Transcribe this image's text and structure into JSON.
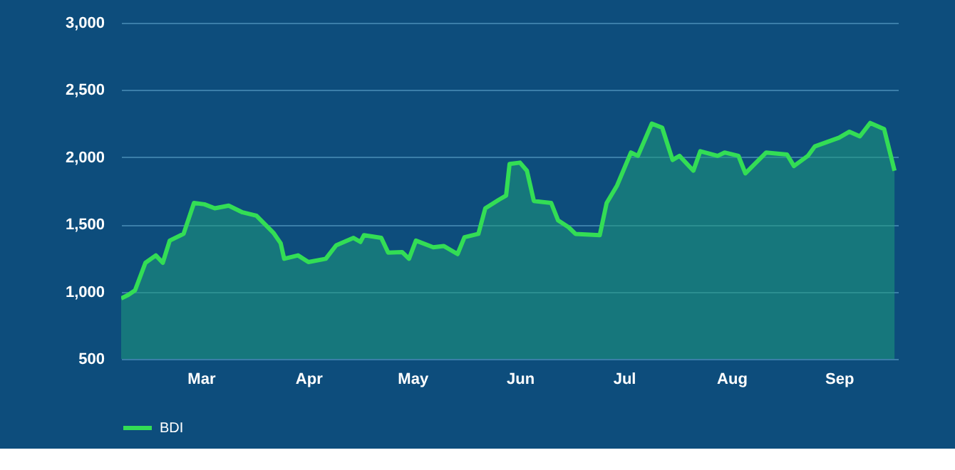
{
  "chart_data": {
    "type": "area",
    "x": [
      "--02-06",
      "--02-08",
      "--02-10",
      "--02-13",
      "--02-16",
      "--02-18",
      "--02-20",
      "--02-24",
      "--02-27",
      "--03-02",
      "--03-05",
      "--03-09",
      "--03-13",
      "--03-17",
      "--03-22",
      "--03-24",
      "--03-25",
      "--03-29",
      "--04-01",
      "--04-06",
      "--04-09",
      "--04-14",
      "--04-16",
      "--04-17",
      "--04-22",
      "--04-24",
      "--04-28",
      "--04-30",
      "--05-02",
      "--05-07",
      "--05-10",
      "--05-14",
      "--05-16",
      "--05-20",
      "--05-22",
      "--05-26",
      "--05-28",
      "--05-29",
      "--06-01",
      "--06-03",
      "--06-05",
      "--06-10",
      "--06-12",
      "--06-15",
      "--06-17",
      "--06-24",
      "--06-26",
      "--06-29",
      "--07-03",
      "--07-05",
      "--07-09",
      "--07-12",
      "--07-15",
      "--07-17",
      "--07-21",
      "--07-23",
      "--07-28",
      "--07-30",
      "--08-03",
      "--08-05",
      "--08-11",
      "--08-17",
      "--08-19",
      "--08-23",
      "--08-25",
      "--09-01",
      "--09-04",
      "--09-07",
      "--09-10",
      "--09-14",
      "--09-17"
    ],
    "series": [
      {
        "name": "BDI",
        "color": "#33dd55",
        "values": [
          950,
          975,
          1010,
          1215,
          1270,
          1215,
          1380,
          1430,
          1660,
          1650,
          1620,
          1640,
          1590,
          1565,
          1435,
          1360,
          1245,
          1270,
          1220,
          1245,
          1345,
          1400,
          1370,
          1420,
          1400,
          1290,
          1295,
          1245,
          1380,
          1330,
          1340,
          1280,
          1405,
          1430,
          1620,
          1685,
          1715,
          1950,
          1960,
          1900,
          1675,
          1660,
          1530,
          1480,
          1430,
          1420,
          1660,
          1790,
          2035,
          2010,
          2250,
          2220,
          1980,
          2010,
          1900,
          2045,
          2010,
          2035,
          2010,
          1880,
          2035,
          2020,
          1935,
          2010,
          2080,
          2145,
          2190,
          2155,
          2255,
          2210,
          1900
        ]
      }
    ],
    "xlim": [
      "--02-06",
      "--09-18"
    ],
    "xticks": [
      {
        "value": "--03-01",
        "label": "Mar"
      },
      {
        "value": "--04-01",
        "label": "Apr"
      },
      {
        "value": "--05-01",
        "label": "May"
      },
      {
        "value": "--06-01",
        "label": "Jun"
      },
      {
        "value": "--07-01",
        "label": "Jul"
      },
      {
        "value": "--08-01",
        "label": "Aug"
      },
      {
        "value": "--09-01",
        "label": "Sep"
      }
    ],
    "ylim": [
      500,
      3000
    ],
    "yticks": [
      500,
      {
        "value": 1000,
        "label": "1,000"
      },
      {
        "value": 1500,
        "label": "1,500"
      },
      {
        "value": 2000,
        "label": "2,000"
      },
      {
        "value": 2500,
        "label": "2,500"
      },
      {
        "value": 3000,
        "label": "3,000"
      }
    ],
    "grid": "y",
    "legend": "bottom",
    "marker": "none",
    "line_style": "solid"
  }
}
